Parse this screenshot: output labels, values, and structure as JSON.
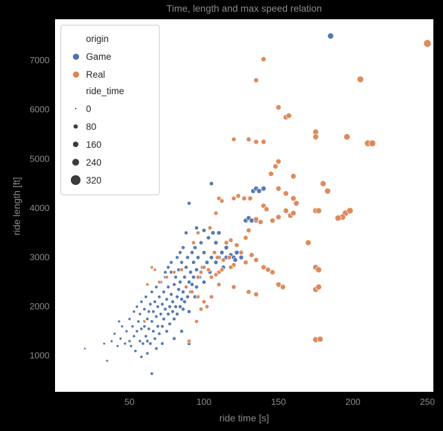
{
  "chart_data": {
    "type": "scatter",
    "title": "Time, length and max speed relation",
    "xlabel": "ride time [s]",
    "ylabel": "ride length [ft]",
    "xlim": [
      0,
      254
    ],
    "ylim": [
      270,
      7840
    ],
    "xticks": [
      50,
      100,
      150,
      200,
      250
    ],
    "yticks": [
      1000,
      2000,
      3000,
      4000,
      5000,
      6000,
      7000
    ],
    "grid": false,
    "plot_bg": "#ffffff",
    "page_bg": "#000000",
    "text_color": "#8c8c8c",
    "legend": {
      "position": "upper-left",
      "hue_title": "origin",
      "hue_items": [
        {
          "label": "Game",
          "color": "#4C72B0"
        },
        {
          "label": "Real",
          "color": "#DD8452"
        }
      ],
      "size_title": "ride_time",
      "size_items": [
        0,
        80,
        160,
        240,
        320
      ],
      "size_range": [
        0,
        340
      ],
      "size_encodes": "ride_time (same variable as x axis)"
    },
    "series": [
      {
        "name": "Game",
        "color": "#4C72B0",
        "points": [
          [
            45,
            1600
          ],
          [
            47,
            1250
          ],
          [
            48,
            1500
          ],
          [
            50,
            1300
          ],
          [
            50,
            1750
          ],
          [
            51,
            1200
          ],
          [
            52,
            1600
          ],
          [
            53,
            1400
          ],
          [
            53,
            1900
          ],
          [
            54,
            1100
          ],
          [
            55,
            1500
          ],
          [
            55,
            2000
          ],
          [
            56,
            1700
          ],
          [
            57,
            1300
          ],
          [
            57,
            1850
          ],
          [
            58,
            1550
          ],
          [
            58,
            2100
          ],
          [
            59,
            1250
          ],
          [
            60,
            1600
          ],
          [
            60,
            1950
          ],
          [
            61,
            1400
          ],
          [
            61,
            2200
          ],
          [
            62,
            1750
          ],
          [
            62,
            1300
          ],
          [
            63,
            1900
          ],
          [
            63,
            1550
          ],
          [
            64,
            2050
          ],
          [
            64,
            1250
          ],
          [
            65,
            1700
          ],
          [
            65,
            2300
          ],
          [
            66,
            1500
          ],
          [
            66,
            1900
          ],
          [
            67,
            2100
          ],
          [
            67,
            1350
          ],
          [
            68,
            1800
          ],
          [
            68,
            2400
          ],
          [
            69,
            1600
          ],
          [
            69,
            2000
          ],
          [
            70,
            1450
          ],
          [
            70,
            2200
          ],
          [
            71,
            1850
          ],
          [
            71,
            2500
          ],
          [
            72,
            1600
          ],
          [
            72,
            2050
          ],
          [
            73,
            2300
          ],
          [
            73,
            1750
          ],
          [
            74,
            1950
          ],
          [
            74,
            2600
          ],
          [
            75,
            1500
          ],
          [
            75,
            2150
          ],
          [
            76,
            1850
          ],
          [
            76,
            2400
          ],
          [
            77,
            2000
          ],
          [
            77,
            1650
          ],
          [
            78,
            2250
          ],
          [
            78,
            2700
          ],
          [
            79,
            1900
          ],
          [
            79,
            2100
          ],
          [
            80,
            2450
          ],
          [
            80,
            1750
          ],
          [
            81,
            2000
          ],
          [
            81,
            2600
          ],
          [
            82,
            2200
          ],
          [
            82,
            1850
          ],
          [
            83,
            2350
          ],
          [
            83,
            2750
          ],
          [
            84,
            2000
          ],
          [
            84,
            2500
          ],
          [
            85,
            2150
          ],
          [
            85,
            2900
          ],
          [
            86,
            2300
          ],
          [
            86,
            1950
          ],
          [
            87,
            2600
          ],
          [
            87,
            2100
          ],
          [
            88,
            2400
          ],
          [
            88,
            2800
          ],
          [
            89,
            2200
          ],
          [
            89,
            3000
          ],
          [
            90,
            2500
          ],
          [
            90,
            1900
          ],
          [
            91,
            2700
          ],
          [
            91,
            2300
          ],
          [
            92,
            3100
          ],
          [
            92,
            2450
          ],
          [
            93,
            2600
          ],
          [
            93,
            2900
          ],
          [
            94,
            2200
          ],
          [
            94,
            3200
          ],
          [
            95,
            2750
          ],
          [
            95,
            2400
          ],
          [
            20,
            1150
          ],
          [
            33,
            1250
          ],
          [
            35,
            900
          ],
          [
            38,
            1300
          ],
          [
            40,
            1450
          ],
          [
            42,
            1200
          ],
          [
            43,
            1700
          ],
          [
            44,
            1350
          ],
          [
            65,
            640
          ],
          [
            58,
            980
          ],
          [
            62,
            1050
          ],
          [
            68,
            1150
          ],
          [
            72,
            1250
          ],
          [
            80,
            1350
          ],
          [
            85,
            1500
          ],
          [
            90,
            1250
          ],
          [
            96,
            3000
          ],
          [
            97,
            2600
          ],
          [
            98,
            3300
          ],
          [
            99,
            2800
          ],
          [
            100,
            3100
          ],
          [
            100,
            2500
          ],
          [
            102,
            2900
          ],
          [
            103,
            3400
          ],
          [
            104,
            2700
          ],
          [
            105,
            4500
          ],
          [
            105,
            3000
          ],
          [
            106,
            3500
          ],
          [
            108,
            2900
          ],
          [
            108,
            3300
          ],
          [
            110,
            3000
          ],
          [
            110,
            3500
          ],
          [
            112,
            3100
          ],
          [
            113,
            2800
          ],
          [
            115,
            3200
          ],
          [
            115,
            3000
          ],
          [
            118,
            3050
          ],
          [
            120,
            3000
          ],
          [
            121,
            2950
          ],
          [
            122,
            3100
          ],
          [
            125,
            3000
          ],
          [
            90,
            4100
          ],
          [
            95,
            3600
          ],
          [
            100,
            3550
          ],
          [
            128,
            3750
          ],
          [
            130,
            3800
          ],
          [
            132,
            3750
          ],
          [
            133,
            4350
          ],
          [
            135,
            4400
          ],
          [
            135,
            3750
          ],
          [
            137,
            4350
          ],
          [
            140,
            4400
          ],
          [
            185,
            7500
          ],
          [
            88,
            3500
          ],
          [
            86,
            3200
          ],
          [
            84,
            3100
          ],
          [
            82,
            3000
          ],
          [
            78,
            2900
          ],
          [
            76,
            2800
          ],
          [
            74,
            2700
          ]
        ]
      },
      {
        "name": "Real",
        "color": "#DD8452",
        "points": [
          [
            250,
            7350
          ],
          [
            140,
            7030
          ],
          [
            135,
            6600
          ],
          [
            205,
            6620
          ],
          [
            150,
            6050
          ],
          [
            155,
            5850
          ],
          [
            157,
            5880
          ],
          [
            120,
            5400
          ],
          [
            130,
            5400
          ],
          [
            135,
            5350
          ],
          [
            140,
            5350
          ],
          [
            175,
            5550
          ],
          [
            175,
            5450
          ],
          [
            196,
            5450
          ],
          [
            210,
            5320
          ],
          [
            213,
            5320
          ],
          [
            150,
            4950
          ],
          [
            148,
            4850
          ],
          [
            145,
            4700
          ],
          [
            160,
            4650
          ],
          [
            180,
            4500
          ],
          [
            183,
            4350
          ],
          [
            150,
            4400
          ],
          [
            155,
            4300
          ],
          [
            160,
            4200
          ],
          [
            162,
            4100
          ],
          [
            120,
            4200
          ],
          [
            123,
            4250
          ],
          [
            127,
            4200
          ],
          [
            110,
            4200
          ],
          [
            112,
            4150
          ],
          [
            140,
            4050
          ],
          [
            142,
            3980
          ],
          [
            155,
            3950
          ],
          [
            158,
            3850
          ],
          [
            160,
            3900
          ],
          [
            175,
            3950
          ],
          [
            177,
            3950
          ],
          [
            195,
            3900
          ],
          [
            193,
            3820
          ],
          [
            198,
            3950
          ],
          [
            190,
            3800
          ],
          [
            150,
            3820
          ],
          [
            146,
            3750
          ],
          [
            138,
            3720
          ],
          [
            135,
            3780
          ],
          [
            170,
            3300
          ],
          [
            130,
            3550
          ],
          [
            128,
            3400
          ],
          [
            118,
            3350
          ],
          [
            115,
            3300
          ],
          [
            122,
            3250
          ],
          [
            125,
            3100
          ],
          [
            132,
            3050
          ],
          [
            135,
            2950
          ],
          [
            128,
            2900
          ],
          [
            120,
            2850
          ],
          [
            118,
            2800
          ],
          [
            112,
            2750
          ],
          [
            110,
            2700
          ],
          [
            108,
            2650
          ],
          [
            105,
            2600
          ],
          [
            103,
            2750
          ],
          [
            100,
            2800
          ],
          [
            98,
            2700
          ],
          [
            96,
            2600
          ],
          [
            107,
            3100
          ],
          [
            109,
            3000
          ],
          [
            113,
            2950
          ],
          [
            117,
            3000
          ],
          [
            140,
            2800
          ],
          [
            143,
            2750
          ],
          [
            146,
            2700
          ],
          [
            150,
            2450
          ],
          [
            153,
            2400
          ],
          [
            175,
            2800
          ],
          [
            177,
            2750
          ],
          [
            175,
            2350
          ],
          [
            177,
            2400
          ],
          [
            175,
            1330
          ],
          [
            178,
            1340
          ],
          [
            90,
            1300
          ],
          [
            95,
            1700
          ],
          [
            100,
            2100
          ],
          [
            105,
            2200
          ],
          [
            65,
            2800
          ],
          [
            67,
            2750
          ],
          [
            60,
            1700
          ],
          [
            62,
            2450
          ],
          [
            70,
            2500
          ],
          [
            75,
            2600
          ],
          [
            80,
            2700
          ],
          [
            85,
            2750
          ],
          [
            88,
            2400
          ],
          [
            92,
            2300
          ],
          [
            96,
            2200
          ],
          [
            135,
            2250
          ],
          [
            130,
            2300
          ],
          [
            120,
            2400
          ],
          [
            110,
            2450
          ],
          [
            98,
            1950
          ],
          [
            102,
            2000
          ],
          [
            131,
            4200
          ],
          [
            108,
            3900
          ],
          [
            104,
            3600
          ],
          [
            96,
            3500
          ],
          [
            93,
            3300
          ]
        ]
      }
    ]
  }
}
